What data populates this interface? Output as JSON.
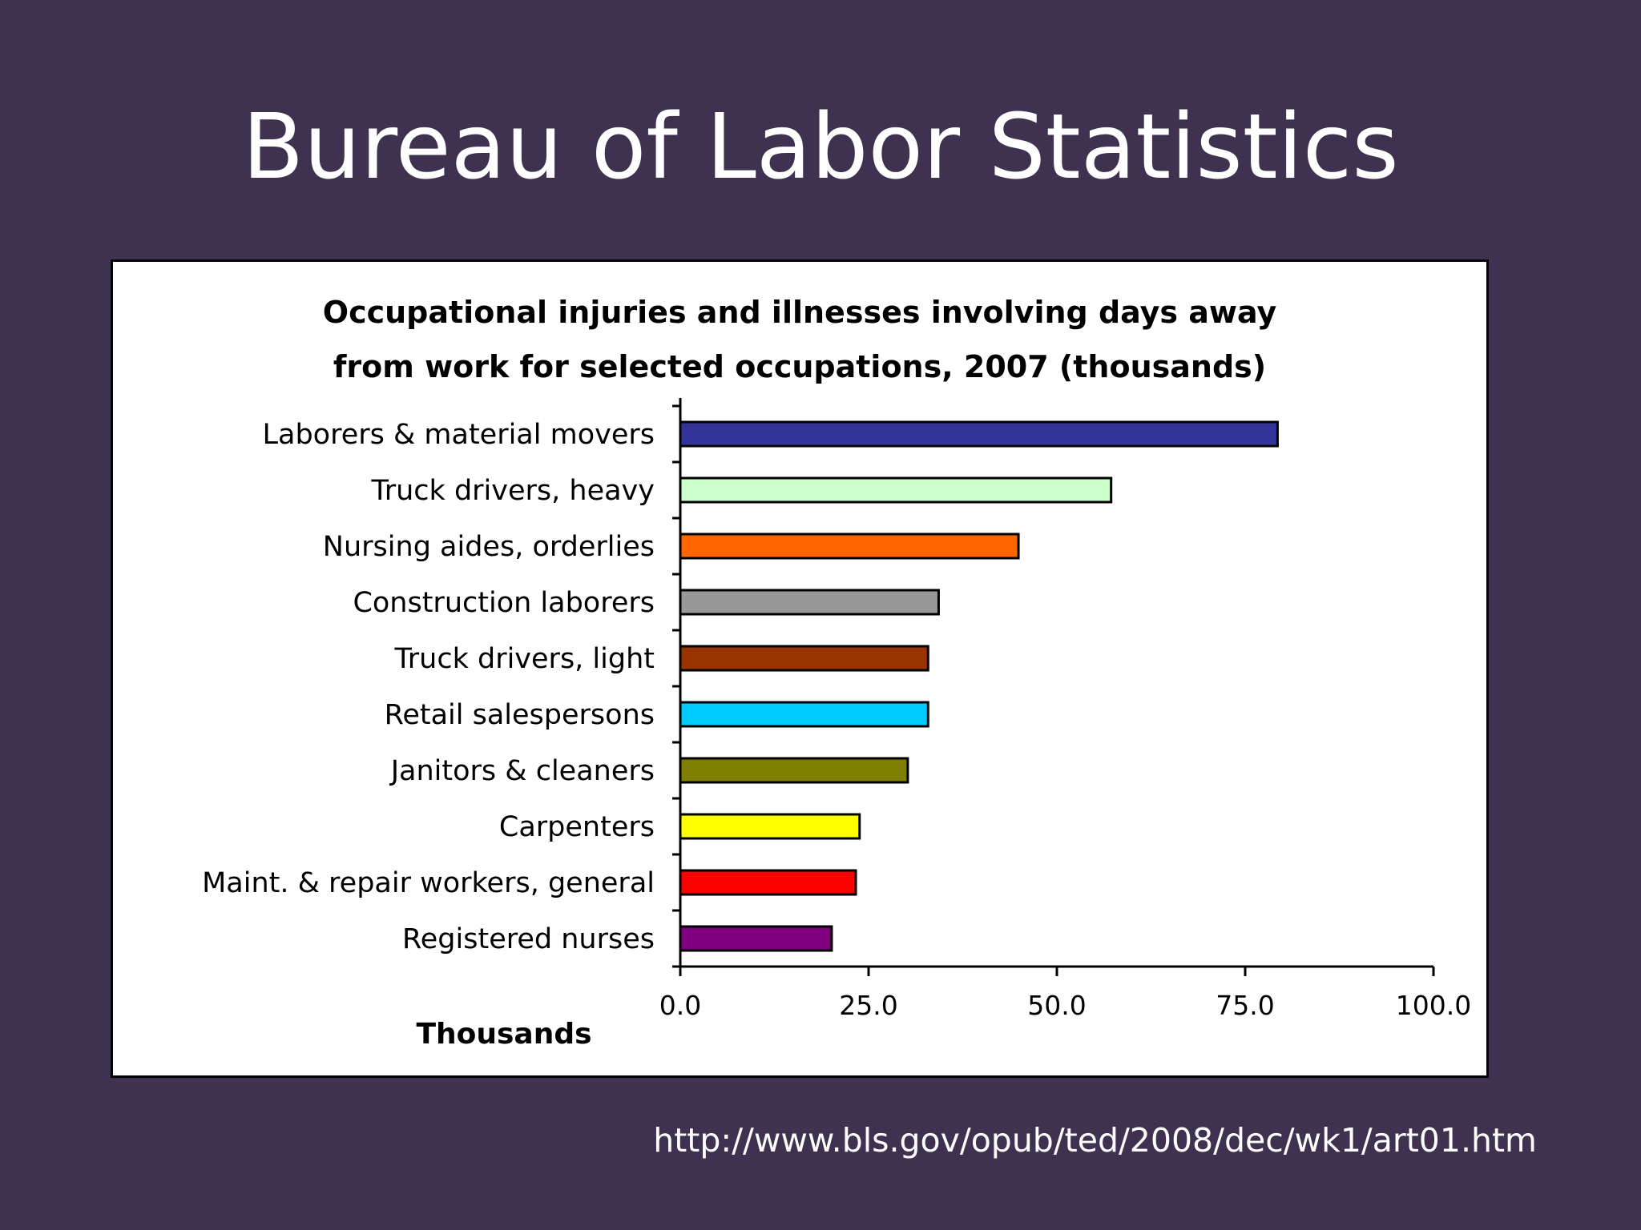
{
  "slide": {
    "title": "Bureau of Labor Statistics",
    "source_url": "http://www.bls.gov/opub/ted/2008/dec/wk1/art01.htm",
    "background_color": "#3f3150"
  },
  "chart_data": {
    "type": "bar",
    "orientation": "horizontal",
    "title_lines": [
      "Occupational injuries and illnesses involving days away",
      "from work for selected occupations, 2007 (thousands)"
    ],
    "xlabel": "Thousands",
    "ylabel": "",
    "xlim": [
      0,
      100
    ],
    "xticks": [
      "0.0",
      "25.0",
      "50.0",
      "75.0",
      "100.0"
    ],
    "xtick_values": [
      0,
      25,
      50,
      75,
      100
    ],
    "grid": false,
    "legend": "none",
    "categories": [
      "Laborers & material movers",
      "Truck drivers, heavy",
      "Nursing aides, orderlies",
      "Construction laborers",
      "Truck drivers, light",
      "Retail salespersons",
      "Janitors & cleaners",
      "Carpenters",
      "Maint. & repair workers, general",
      "Registered nurses"
    ],
    "values": [
      79.3,
      57.2,
      44.9,
      34.3,
      32.9,
      32.9,
      30.2,
      23.8,
      23.3,
      20.1
    ],
    "colors": [
      "#333399",
      "#ccffcc",
      "#ff6600",
      "#999999",
      "#993300",
      "#00ccff",
      "#808000",
      "#ffff00",
      "#ff0000",
      "#800080"
    ]
  }
}
